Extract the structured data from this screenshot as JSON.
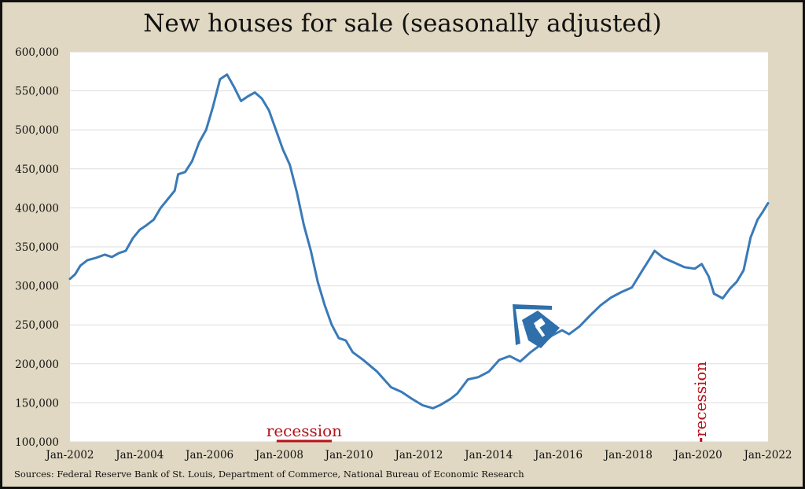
{
  "chart_data": {
    "type": "line",
    "title": "New houses for sale (seasonally adjusted)",
    "source": "Sources: Federal Reserve Bank of St. Louis, Department of Commerce, National Bureau of Economic Research",
    "xlabel": "",
    "ylabel": "",
    "xlim": [
      2002,
      2022
    ],
    "ylim": [
      100000,
      600000
    ],
    "yticks": [
      {
        "value": 100000,
        "label": "100,000"
      },
      {
        "value": 150000,
        "label": "150,000"
      },
      {
        "value": 200000,
        "label": "200,000"
      },
      {
        "value": 250000,
        "label": "250,000"
      },
      {
        "value": 300000,
        "label": "300,000"
      },
      {
        "value": 350000,
        "label": "350,000"
      },
      {
        "value": 400000,
        "label": "400,000"
      },
      {
        "value": 450000,
        "label": "450,000"
      },
      {
        "value": 500000,
        "label": "500,000"
      },
      {
        "value": 550000,
        "label": "550,000"
      },
      {
        "value": 600000,
        "label": "600,000"
      }
    ],
    "xticks": [
      {
        "value": 2002,
        "label": "Jan-2002"
      },
      {
        "value": 2004,
        "label": "Jan-2004"
      },
      {
        "value": 2006,
        "label": "Jan-2006"
      },
      {
        "value": 2008,
        "label": "Jan-2008"
      },
      {
        "value": 2010,
        "label": "Jan-2010"
      },
      {
        "value": 2012,
        "label": "Jan-2012"
      },
      {
        "value": 2014,
        "label": "Jan-2014"
      },
      {
        "value": 2016,
        "label": "Jan-2016"
      },
      {
        "value": 2018,
        "label": "Jan-2018"
      },
      {
        "value": 2020,
        "label": "Jan-2020"
      },
      {
        "value": 2022,
        "label": "Jan-2022"
      }
    ],
    "grid": true,
    "series": [
      {
        "name": "New houses for sale",
        "color": "#3a7ab8",
        "points": [
          [
            2002.0,
            309000
          ],
          [
            2002.15,
            315000
          ],
          [
            2002.3,
            326000
          ],
          [
            2002.5,
            333000
          ],
          [
            2002.75,
            336000
          ],
          [
            2003.0,
            340000
          ],
          [
            2003.2,
            337000
          ],
          [
            2003.4,
            342000
          ],
          [
            2003.6,
            345000
          ],
          [
            2003.8,
            361000
          ],
          [
            2004.0,
            372000
          ],
          [
            2004.2,
            378000
          ],
          [
            2004.4,
            385000
          ],
          [
            2004.6,
            400000
          ],
          [
            2004.8,
            411000
          ],
          [
            2005.0,
            422000
          ],
          [
            2005.1,
            443000
          ],
          [
            2005.3,
            446000
          ],
          [
            2005.5,
            460000
          ],
          [
            2005.7,
            484000
          ],
          [
            2005.9,
            500000
          ],
          [
            2006.1,
            530000
          ],
          [
            2006.3,
            565000
          ],
          [
            2006.5,
            571000
          ],
          [
            2006.7,
            555000
          ],
          [
            2006.9,
            537000
          ],
          [
            2007.1,
            543000
          ],
          [
            2007.3,
            548000
          ],
          [
            2007.5,
            540000
          ],
          [
            2007.7,
            525000
          ],
          [
            2007.9,
            500000
          ],
          [
            2008.1,
            475000
          ],
          [
            2008.3,
            455000
          ],
          [
            2008.5,
            420000
          ],
          [
            2008.7,
            378000
          ],
          [
            2008.9,
            345000
          ],
          [
            2009.1,
            305000
          ],
          [
            2009.3,
            275000
          ],
          [
            2009.5,
            250000
          ],
          [
            2009.7,
            233000
          ],
          [
            2009.9,
            230000
          ],
          [
            2010.1,
            215000
          ],
          [
            2010.4,
            205000
          ],
          [
            2010.8,
            190000
          ],
          [
            2011.2,
            170000
          ],
          [
            2011.5,
            164000
          ],
          [
            2011.8,
            155000
          ],
          [
            2012.1,
            147000
          ],
          [
            2012.4,
            143000
          ],
          [
            2012.6,
            147000
          ],
          [
            2012.9,
            155000
          ],
          [
            2013.1,
            162000
          ],
          [
            2013.4,
            180000
          ],
          [
            2013.7,
            183000
          ],
          [
            2014.0,
            190000
          ],
          [
            2014.3,
            205000
          ],
          [
            2014.6,
            210000
          ],
          [
            2014.9,
            203000
          ],
          [
            2015.2,
            215000
          ],
          [
            2015.5,
            225000
          ],
          [
            2015.8,
            236000
          ],
          [
            2016.1,
            243000
          ],
          [
            2016.3,
            238000
          ],
          [
            2016.6,
            248000
          ],
          [
            2016.9,
            262000
          ],
          [
            2017.2,
            275000
          ],
          [
            2017.5,
            285000
          ],
          [
            2017.8,
            292000
          ],
          [
            2018.1,
            298000
          ],
          [
            2018.4,
            320000
          ],
          [
            2018.6,
            334000
          ],
          [
            2018.75,
            345000
          ],
          [
            2019.0,
            336000
          ],
          [
            2019.3,
            330000
          ],
          [
            2019.6,
            324000
          ],
          [
            2019.9,
            322000
          ],
          [
            2020.1,
            328000
          ],
          [
            2020.3,
            312000
          ],
          [
            2020.45,
            290000
          ],
          [
            2020.7,
            284000
          ],
          [
            2020.9,
            296000
          ],
          [
            2021.1,
            305000
          ],
          [
            2021.3,
            320000
          ],
          [
            2021.5,
            362000
          ],
          [
            2021.7,
            385000
          ],
          [
            2021.85,
            395000
          ],
          [
            2022.0,
            406000
          ]
        ]
      }
    ],
    "annotations": [
      {
        "text": "recession",
        "start": 2007.92,
        "end": 2009.5,
        "orientation": "horizontal"
      },
      {
        "text": "recession",
        "start": 2020.08,
        "end": 2020.33,
        "orientation": "vertical"
      }
    ],
    "colors": {
      "line": "#3a7ab8",
      "recession": "#b4121a",
      "frame": "#e0d8c2",
      "plot_bg": "#ffffff",
      "grid": "#dddddd"
    },
    "logo": "house-gavel-icon"
  }
}
